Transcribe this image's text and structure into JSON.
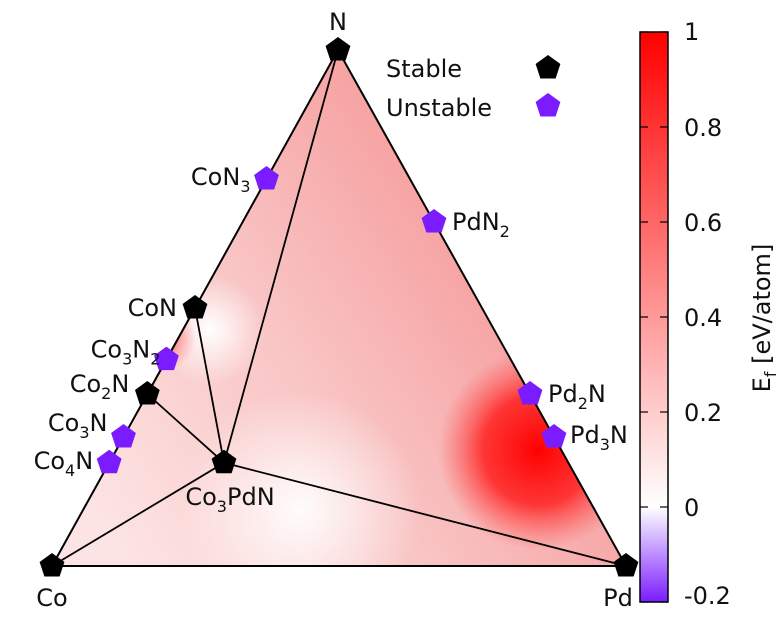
{
  "chart_data": {
    "type": "ternary-heatmap",
    "vertices": [
      {
        "name": "N",
        "label": "N"
      },
      {
        "name": "Co",
        "label": "Co"
      },
      {
        "name": "Pd",
        "label": "Pd"
      }
    ],
    "legend": {
      "placement": "top-right",
      "entries": [
        {
          "name": "Stable",
          "color": "#000000",
          "marker": "pentagon"
        },
        {
          "name": "Unstable",
          "color": "#7a1cff",
          "marker": "pentagon"
        }
      ]
    },
    "points": [
      {
        "base": "N",
        "sub": "",
        "tail": "",
        "co": 0,
        "pd": 0,
        "n": 1,
        "stable": true,
        "label_side": "none"
      },
      {
        "base": "Co",
        "sub": "",
        "tail": "",
        "co": 1,
        "pd": 0,
        "n": 0,
        "stable": true,
        "label_side": "none"
      },
      {
        "base": "Pd",
        "sub": "",
        "tail": "",
        "co": 0,
        "pd": 1,
        "n": 0,
        "stable": true,
        "label_side": "none"
      },
      {
        "base": "CoN",
        "sub": "",
        "tail": "",
        "co": 0.5,
        "pd": 0,
        "n": 0.5,
        "stable": true,
        "label_side": "left"
      },
      {
        "base": "Co",
        "sub": "2",
        "tail": "N",
        "co": 0.6667,
        "pd": 0,
        "n": 0.3333,
        "stable": true,
        "label_side": "left"
      },
      {
        "base": "Co",
        "sub": "3",
        "tail": "PdN",
        "co": 0.6,
        "pd": 0.2,
        "n": 0.2,
        "stable": true,
        "label_side": "below"
      },
      {
        "base": "CoN",
        "sub": "3",
        "tail": "",
        "co": 0.25,
        "pd": 0,
        "n": 0.75,
        "stable": false,
        "label_side": "left"
      },
      {
        "base": "Co",
        "sub": "3",
        "tail": "N",
        "sub2": "2",
        "co": 0.6,
        "pd": 0,
        "n": 0.4,
        "stable": false,
        "label_side": "left"
      },
      {
        "base": "Co",
        "sub": "3",
        "tail": "N",
        "co": 0.75,
        "pd": 0,
        "n": 0.25,
        "stable": false,
        "label_side": "left"
      },
      {
        "base": "Co",
        "sub": "4",
        "tail": "N",
        "co": 0.8,
        "pd": 0,
        "n": 0.2,
        "stable": false,
        "label_side": "left"
      },
      {
        "base": "PdN",
        "sub": "2",
        "tail": "",
        "co": 0,
        "pd": 0.3333,
        "n": 0.6667,
        "stable": false,
        "label_side": "right"
      },
      {
        "base": "Pd",
        "sub": "2",
        "tail": "N",
        "co": 0,
        "pd": 0.6667,
        "n": 0.3333,
        "stable": false,
        "label_side": "right"
      },
      {
        "base": "Pd",
        "sub": "3",
        "tail": "N",
        "co": 0,
        "pd": 0.75,
        "n": 0.25,
        "stable": false,
        "label_side": "right"
      }
    ],
    "tie_lines": [
      [
        "Co",
        "Co3PdN"
      ],
      [
        "Pd",
        "Co3PdN"
      ],
      [
        "N",
        "Co3PdN"
      ],
      [
        "CoN",
        "Co3PdN"
      ],
      [
        "Co2N",
        "Co3PdN"
      ],
      [
        "CoN",
        "Co2N"
      ]
    ],
    "colorbar": {
      "label_base": "E",
      "label_sub": "f",
      "label_rest": " [eV/atom]",
      "range": [
        -0.2,
        1
      ],
      "ticks": [
        "1",
        "0.8",
        "0.6",
        "0.4",
        "0.2",
        "0",
        "-0.2"
      ],
      "tick_values": [
        1,
        0.8,
        0.6,
        0.4,
        0.2,
        0,
        -0.2
      ],
      "colors": {
        "low": "#7a1cff",
        "mid": "#ffffff",
        "high": "#ff0000"
      }
    },
    "grid": false
  }
}
